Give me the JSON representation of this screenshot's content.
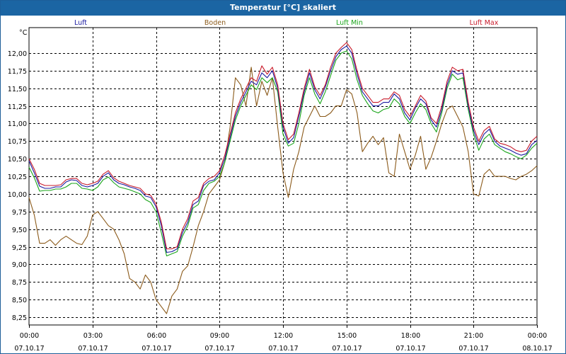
{
  "window": {
    "title": "Temperatur [°C] skaliert"
  },
  "chart_data": {
    "type": "line",
    "title": "Temperatur [°C] skaliert",
    "ylabel": "°C",
    "xlim": [
      "2017-10-07T00:00",
      "2017-10-08T00:00"
    ],
    "ylim": [
      8.15,
      12.3
    ],
    "grid": true,
    "legend_position": "top",
    "y_ticks": [
      "12,00",
      "11,75",
      "11,50",
      "11,25",
      "11,00",
      "10,75",
      "10,50",
      "10,25",
      "10,00",
      "9,75",
      "9,50",
      "9,25",
      "9,00",
      "8,75",
      "8,50",
      "8,25"
    ],
    "x_ticks": [
      {
        "time": "00:00",
        "date": "07.10.17"
      },
      {
        "time": "03:00",
        "date": "07.10.17"
      },
      {
        "time": "06:00",
        "date": "07.10.17"
      },
      {
        "time": "09:00",
        "date": "07.10.17"
      },
      {
        "time": "12:00",
        "date": "07.10.17"
      },
      {
        "time": "15:00",
        "date": "07.10.17"
      },
      {
        "time": "18:00",
        "date": "07.10.17"
      },
      {
        "time": "21:00",
        "date": "07.10.17"
      },
      {
        "time": "00:00",
        "date": "08.10.17"
      }
    ],
    "x_hours": [
      0,
      0.25,
      0.5,
      0.75,
      1,
      1.25,
      1.5,
      1.75,
      2,
      2.25,
      2.5,
      2.75,
      3,
      3.25,
      3.5,
      3.75,
      4,
      4.25,
      4.5,
      4.75,
      5,
      5.25,
      5.5,
      5.75,
      6,
      6.25,
      6.5,
      6.75,
      7,
      7.25,
      7.5,
      7.75,
      8,
      8.25,
      8.5,
      8.75,
      9,
      9.25,
      9.5,
      9.75,
      10,
      10.25,
      10.5,
      10.75,
      11,
      11.25,
      11.5,
      11.75,
      12,
      12.25,
      12.5,
      12.75,
      13,
      13.25,
      13.5,
      13.75,
      14,
      14.25,
      14.5,
      14.75,
      15,
      15.25,
      15.5,
      15.75,
      16,
      16.25,
      16.5,
      16.75,
      17,
      17.25,
      17.5,
      17.75,
      18,
      18.25,
      18.5,
      18.75,
      19,
      19.25,
      19.5,
      19.75,
      20,
      20.25,
      20.5,
      20.75,
      21,
      21.25,
      21.5,
      21.75,
      22,
      22.25,
      22.5,
      22.75,
      23,
      23.25,
      23.5,
      23.75,
      24
    ],
    "series": [
      {
        "name": "Luft",
        "color": "#1a1aa0",
        "values": [
          10.47,
          10.3,
          10.11,
          10.08,
          10.08,
          10.1,
          10.1,
          10.17,
          10.2,
          10.19,
          10.12,
          10.1,
          10.12,
          10.15,
          10.25,
          10.3,
          10.2,
          10.15,
          10.13,
          10.1,
          10.08,
          10.05,
          9.97,
          9.95,
          9.82,
          9.55,
          9.17,
          9.18,
          9.22,
          9.45,
          9.6,
          9.85,
          9.9,
          10.12,
          10.18,
          10.2,
          10.3,
          10.5,
          10.8,
          11.1,
          11.3,
          11.45,
          11.6,
          11.55,
          11.72,
          11.65,
          11.75,
          11.5,
          10.95,
          10.72,
          10.8,
          11.1,
          11.45,
          11.72,
          11.48,
          11.35,
          11.52,
          11.75,
          11.95,
          12.05,
          12.1,
          12.0,
          11.7,
          11.45,
          11.35,
          11.25,
          11.25,
          11.3,
          11.3,
          11.42,
          11.35,
          11.15,
          11.05,
          11.22,
          11.35,
          11.28,
          11.05,
          10.95,
          11.2,
          11.55,
          11.75,
          11.7,
          11.72,
          11.25,
          10.9,
          10.7,
          10.85,
          10.92,
          10.75,
          10.68,
          10.65,
          10.62,
          10.58,
          10.55,
          10.57,
          10.7,
          10.76
        ]
      },
      {
        "name": "Boden",
        "color": "#8b5a1a",
        "values": [
          9.95,
          9.7,
          9.3,
          9.3,
          9.35,
          9.27,
          9.35,
          9.4,
          9.35,
          9.3,
          9.28,
          9.4,
          9.7,
          9.75,
          9.65,
          9.55,
          9.5,
          9.35,
          9.15,
          8.8,
          8.75,
          8.65,
          8.85,
          8.75,
          8.5,
          8.4,
          8.3,
          8.55,
          8.65,
          8.9,
          8.98,
          9.25,
          9.55,
          9.75,
          10.0,
          10.1,
          10.2,
          10.45,
          10.95,
          11.65,
          11.55,
          11.25,
          11.8,
          11.25,
          11.6,
          11.4,
          11.65,
          10.95,
          10.3,
          9.95,
          10.35,
          10.6,
          10.95,
          11.1,
          11.25,
          11.1,
          11.1,
          11.15,
          11.25,
          11.25,
          11.48,
          11.42,
          11.15,
          10.6,
          10.72,
          10.82,
          10.7,
          10.8,
          10.3,
          10.25,
          10.85,
          10.6,
          10.35,
          10.55,
          10.82,
          10.35,
          10.52,
          10.75,
          11.0,
          11.2,
          11.25,
          11.1,
          10.95,
          10.6,
          10.0,
          9.97,
          10.28,
          10.35,
          10.25,
          10.25,
          10.25,
          10.22,
          10.2,
          10.25,
          10.28,
          10.33,
          10.4
        ]
      },
      {
        "name": "Luft Min",
        "color": "#1aa51a",
        "values": [
          10.38,
          10.23,
          10.04,
          10.05,
          10.05,
          10.07,
          10.07,
          10.1,
          10.15,
          10.15,
          10.08,
          10.07,
          10.05,
          10.1,
          10.2,
          10.24,
          10.16,
          10.1,
          10.08,
          10.06,
          10.03,
          10.0,
          9.92,
          9.88,
          9.75,
          9.45,
          9.12,
          9.15,
          9.18,
          9.4,
          9.55,
          9.8,
          9.85,
          10.05,
          10.15,
          10.18,
          10.25,
          10.45,
          10.75,
          11.05,
          11.25,
          11.4,
          11.55,
          11.48,
          11.65,
          11.58,
          11.65,
          11.45,
          10.85,
          10.68,
          10.72,
          11.0,
          11.4,
          11.65,
          11.42,
          11.28,
          11.45,
          11.68,
          11.9,
          12.0,
          12.03,
          11.92,
          11.62,
          11.4,
          11.28,
          11.18,
          11.15,
          11.2,
          11.22,
          11.35,
          11.28,
          11.1,
          11.0,
          11.15,
          11.28,
          11.2,
          11.0,
          10.88,
          11.15,
          11.5,
          11.7,
          11.62,
          11.65,
          11.2,
          10.85,
          10.62,
          10.78,
          10.85,
          10.7,
          10.65,
          10.6,
          10.57,
          10.53,
          10.5,
          10.55,
          10.65,
          10.72
        ]
      },
      {
        "name": "Luft Max",
        "color": "#c81a2a",
        "values": [
          10.5,
          10.35,
          10.15,
          10.12,
          10.12,
          10.12,
          10.13,
          10.2,
          10.22,
          10.22,
          10.15,
          10.13,
          10.15,
          10.18,
          10.28,
          10.33,
          10.23,
          10.18,
          10.15,
          10.12,
          10.1,
          10.08,
          10.0,
          9.98,
          9.86,
          9.6,
          9.22,
          9.22,
          9.25,
          9.5,
          9.65,
          9.9,
          9.95,
          10.15,
          10.22,
          10.25,
          10.33,
          10.55,
          10.85,
          11.15,
          11.35,
          11.5,
          11.65,
          11.6,
          11.82,
          11.7,
          11.8,
          11.55,
          11.0,
          10.77,
          10.85,
          11.15,
          11.5,
          11.77,
          11.52,
          11.4,
          11.55,
          11.8,
          12.0,
          12.08,
          12.15,
          12.05,
          11.75,
          11.5,
          11.4,
          11.3,
          11.3,
          11.35,
          11.35,
          11.45,
          11.4,
          11.2,
          11.1,
          11.25,
          11.4,
          11.32,
          11.08,
          11.0,
          11.25,
          11.6,
          11.8,
          11.75,
          11.77,
          11.3,
          10.95,
          10.75,
          10.9,
          10.96,
          10.78,
          10.72,
          10.7,
          10.67,
          10.62,
          10.6,
          10.62,
          10.75,
          10.82
        ]
      }
    ]
  }
}
